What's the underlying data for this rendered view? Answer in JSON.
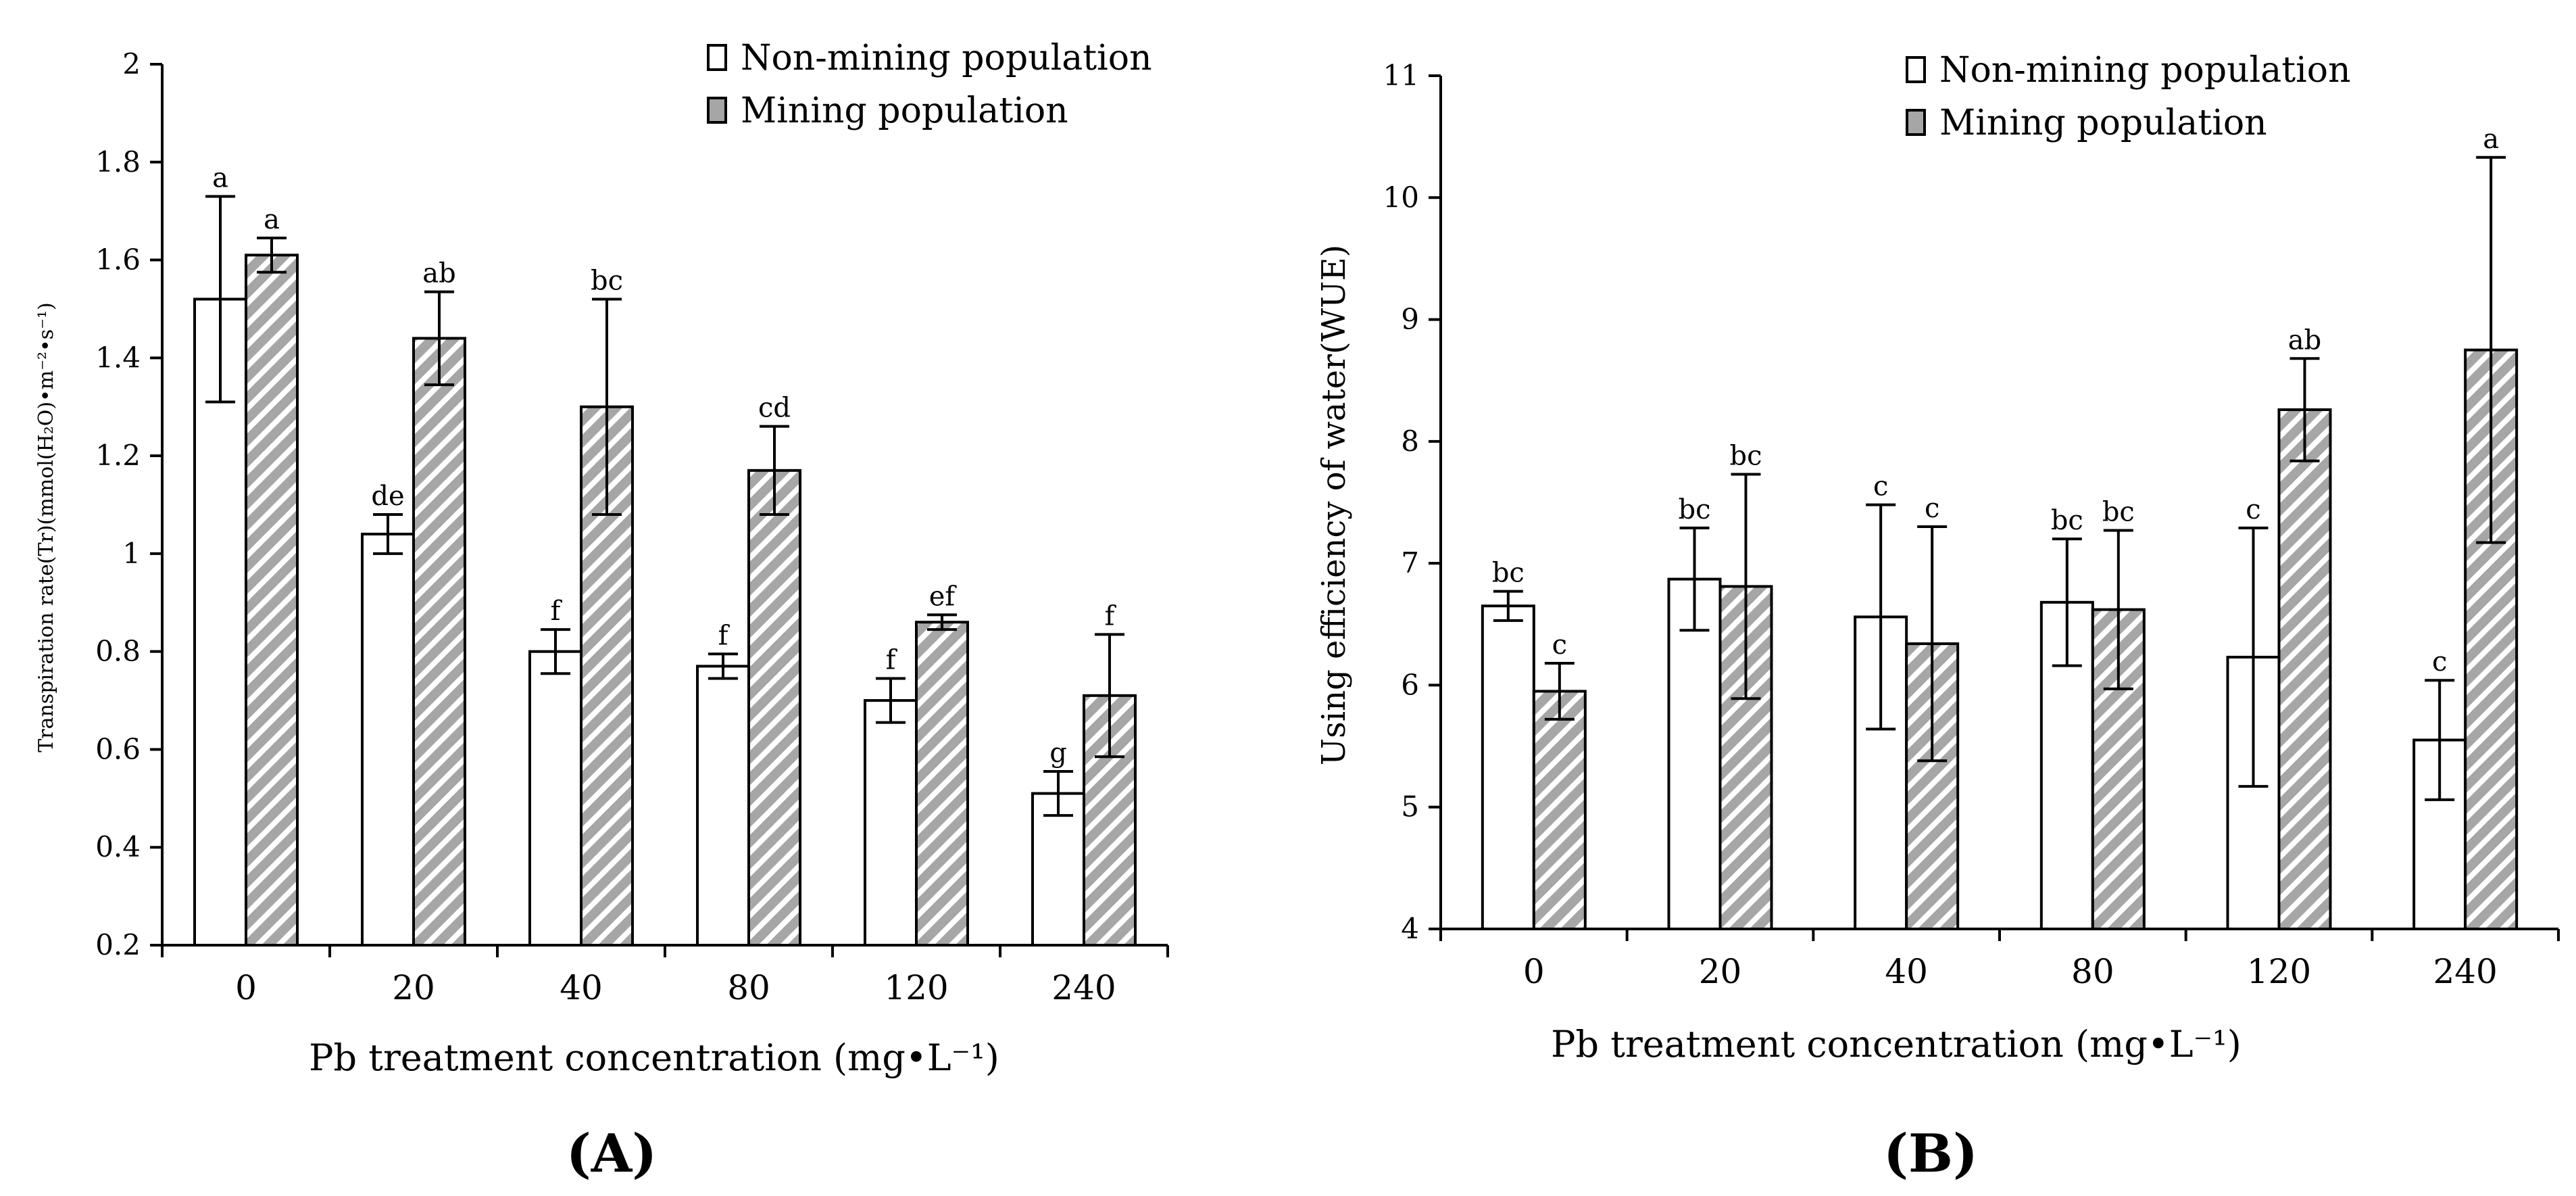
{
  "colors": {
    "bar_open": "#ffffff",
    "bar_hatch": "#a6a6a6",
    "stroke": "#000000"
  },
  "legend": {
    "non_mining": "Non-mining population",
    "mining": "Mining population"
  },
  "panels": [
    {
      "letter": "A"
    },
    {
      "letter": "B"
    }
  ],
  "chart_data": [
    {
      "type": "bar",
      "panel": "A",
      "title": "",
      "xlabel": "Pb treatment concentration (mg•L⁻¹)",
      "ylabel": "Transpiration rate(Tr)(mmol(H₂O)•m⁻²•s⁻¹)",
      "categories": [
        "0",
        "20",
        "40",
        "80",
        "120",
        "240"
      ],
      "ylim": [
        0.2,
        2.0
      ],
      "yticks": [
        "0.2",
        "0.4",
        "0.6",
        "0.8",
        "1",
        "1.2",
        "1.4",
        "1.6",
        "1.8",
        "2"
      ],
      "yticks_values": [
        0.2,
        0.4,
        0.6,
        0.8,
        1.0,
        1.2,
        1.4,
        1.6,
        1.8,
        2.0
      ],
      "series": [
        {
          "name": "Non-mining population",
          "values": [
            1.52,
            1.04,
            0.8,
            0.77,
            0.7,
            0.51
          ],
          "errors": [
            0.21,
            0.04,
            0.045,
            0.025,
            0.045,
            0.045
          ],
          "labels": [
            "a",
            "de",
            "f",
            "f",
            "f",
            "g"
          ]
        },
        {
          "name": "Mining population",
          "values": [
            1.61,
            1.44,
            1.3,
            1.17,
            0.86,
            0.71
          ],
          "errors": [
            0.035,
            0.095,
            0.22,
            0.09,
            0.015,
            0.125
          ],
          "labels": [
            "a",
            "ab",
            "bc",
            "cd",
            "ef",
            "f"
          ]
        }
      ],
      "legend_position": "top-right"
    },
    {
      "type": "bar",
      "panel": "B",
      "title": "",
      "xlabel": "Pb treatment concentration (mg•L⁻¹)",
      "ylabel": "Using efficiency of water(WUE)",
      "categories": [
        "0",
        "20",
        "40",
        "80",
        "120",
        "240"
      ],
      "ylim": [
        4,
        11
      ],
      "yticks": [
        "4",
        "5",
        "6",
        "7",
        "8",
        "9",
        "10",
        "11"
      ],
      "yticks_values": [
        4,
        5,
        6,
        7,
        8,
        9,
        10,
        11
      ],
      "series": [
        {
          "name": "Non-mining population",
          "values": [
            6.65,
            6.87,
            6.56,
            6.68,
            6.23,
            5.55
          ],
          "errors": [
            0.12,
            0.42,
            0.92,
            0.52,
            1.06,
            0.49
          ],
          "labels": [
            "bc",
            "bc",
            "c",
            "bc",
            "c",
            "c"
          ]
        },
        {
          "name": "Mining population",
          "values": [
            5.95,
            6.81,
            6.34,
            6.62,
            8.26,
            8.75
          ],
          "errors": [
            0.23,
            0.92,
            0.96,
            0.65,
            0.42,
            1.58
          ],
          "labels": [
            "c",
            "bc",
            "c",
            "bc",
            "ab",
            "a"
          ]
        }
      ],
      "legend_position": "top-right"
    }
  ]
}
